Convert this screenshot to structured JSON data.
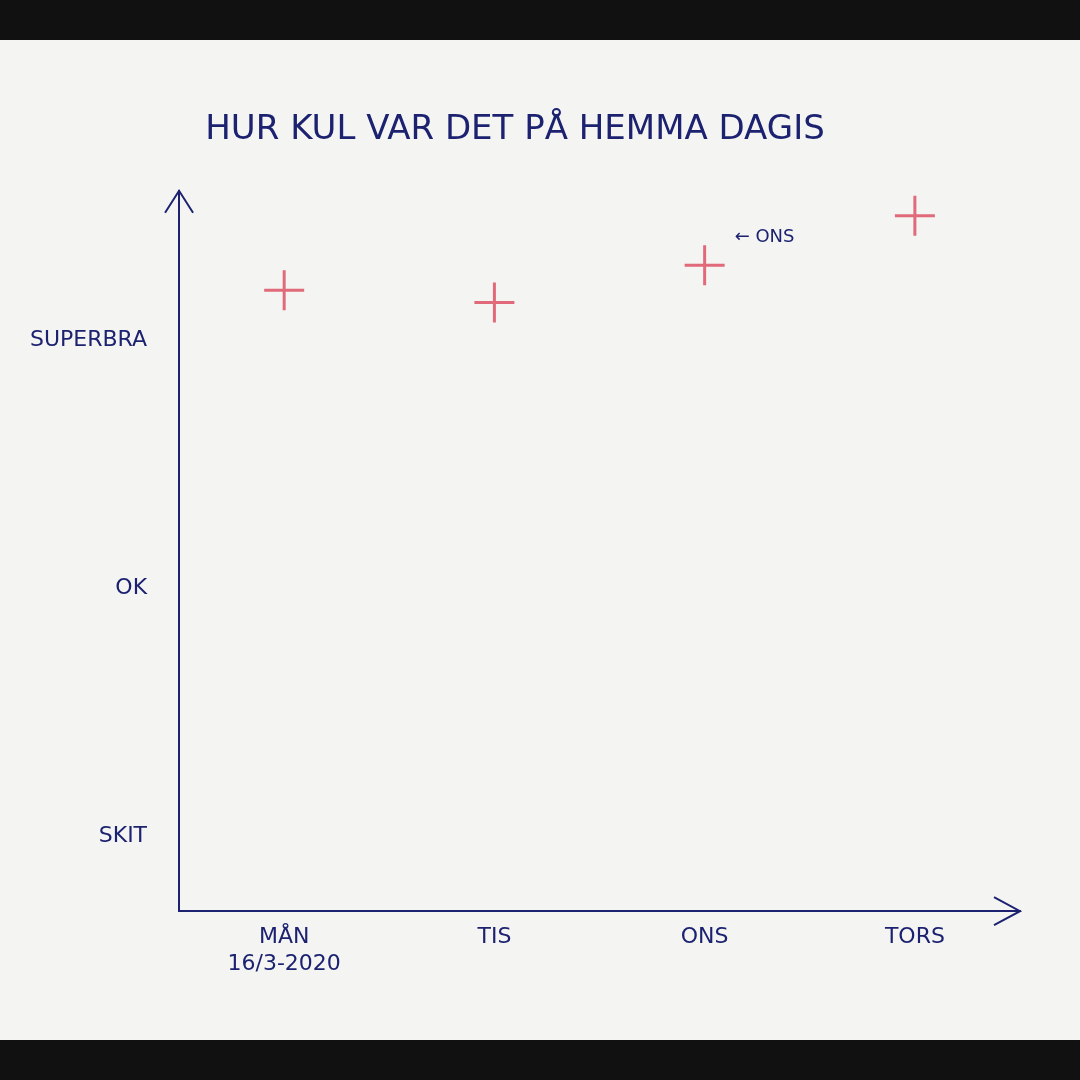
{
  "chart_data": {
    "type": "scatter",
    "title": "HUR KUL VAR DET PÅ HEMMA DAGIS",
    "categories": [
      [
        "MÅN",
        "16/3-2020"
      ],
      "TIS",
      "ONS",
      "TORS"
    ],
    "values": [
      3.2,
      3.15,
      3.3,
      3.5
    ],
    "color": "#e06a7a",
    "marker": "cross",
    "ylim": [
      0.7,
      3.6
    ],
    "yticks": [
      {
        "value": 1,
        "label": "SKIT"
      },
      {
        "value": 2,
        "label": "OK"
      },
      {
        "value": 3,
        "label": "SUPERBRA"
      }
    ],
    "grid": false,
    "annotations": [
      {
        "text": "← ONS",
        "category": "ONS"
      }
    ]
  }
}
